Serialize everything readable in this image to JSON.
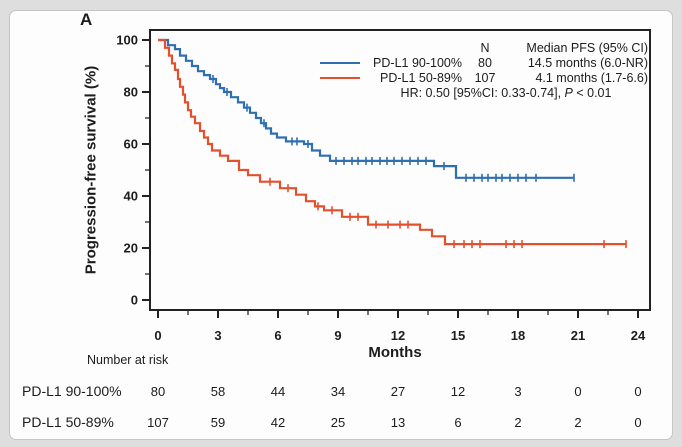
{
  "window": {
    "panel_label": "A"
  },
  "colors": {
    "page_bg": "#dedede",
    "card_bg": "#fdfdfd",
    "card_border": "#c6c6c6",
    "axis": "#222222",
    "text": "#1c1c1c",
    "blue": "#2f6fb1",
    "red": "#e4502c"
  },
  "legend": {
    "n_header": "N",
    "median_header": "Median PFS (95% CI)",
    "hr_prefix": "HR: 0.50 [95%CI: 0.33-0.74], ",
    "hr_p": "P",
    "hr_suffix": " < 0.01"
  },
  "risk_table": {
    "title": "Number at risk",
    "rows": [
      {
        "label": "PD-L1 90-100%",
        "values": [
          80,
          58,
          44,
          34,
          27,
          12,
          3,
          0,
          0
        ]
      },
      {
        "label": "PD-L1 50-89%",
        "values": [
          107,
          59,
          42,
          25,
          13,
          6,
          2,
          2,
          0
        ]
      }
    ]
  },
  "chart_data": {
    "type": "line",
    "subtype": "kaplan-meier-step",
    "xlabel": "Months",
    "ylabel": "Progression-free survival (%)",
    "xlim": [
      0,
      24
    ],
    "ylim": [
      0,
      100
    ],
    "x_ticks": [
      0,
      3,
      6,
      9,
      12,
      15,
      18,
      21,
      24
    ],
    "y_ticks": [
      0,
      20,
      40,
      60,
      80,
      100
    ],
    "grid": false,
    "legend_position": "upper right",
    "hr": 0.5,
    "hr_ci": [
      0.33,
      0.74
    ],
    "p_value": "< 0.01",
    "series": [
      {
        "name": "PD-L1 90-100%",
        "color": "#2f6fb1",
        "n": 80,
        "median_pfs": "14.5 months (6.0-NR)",
        "steps": [
          [
            0,
            100
          ],
          [
            0.5,
            98
          ],
          [
            0.85,
            96.5
          ],
          [
            1.1,
            94
          ],
          [
            1.4,
            92
          ],
          [
            1.7,
            90
          ],
          [
            2.0,
            88
          ],
          [
            2.3,
            86.5
          ],
          [
            2.6,
            85
          ],
          [
            2.9,
            83
          ],
          [
            3.1,
            81.5
          ],
          [
            3.3,
            80
          ],
          [
            3.65,
            78
          ],
          [
            4.0,
            76
          ],
          [
            4.3,
            74
          ],
          [
            4.6,
            72
          ],
          [
            4.9,
            70
          ],
          [
            5.15,
            68
          ],
          [
            5.4,
            66
          ],
          [
            5.65,
            64
          ],
          [
            5.95,
            62.5
          ],
          [
            6.4,
            61
          ],
          [
            7.3,
            60
          ],
          [
            7.7,
            57.5
          ],
          [
            8.1,
            55.5
          ],
          [
            8.6,
            53.5
          ],
          [
            13.8,
            51.5
          ],
          [
            14.9,
            47
          ],
          [
            20.8,
            47
          ]
        ],
        "censors": [
          [
            2.75,
            85
          ],
          [
            3.45,
            80
          ],
          [
            4.45,
            74
          ],
          [
            5.3,
            68
          ],
          [
            6.7,
            61
          ],
          [
            6.95,
            61
          ],
          [
            7.5,
            60
          ],
          [
            8.9,
            53.5
          ],
          [
            9.3,
            53.5
          ],
          [
            9.7,
            53.5
          ],
          [
            10.0,
            53.5
          ],
          [
            10.4,
            53.5
          ],
          [
            10.7,
            53.5
          ],
          [
            11.1,
            53.5
          ],
          [
            11.45,
            53.5
          ],
          [
            11.8,
            53.5
          ],
          [
            12.2,
            53.5
          ],
          [
            12.6,
            53.5
          ],
          [
            13.0,
            53.5
          ],
          [
            13.4,
            53.5
          ],
          [
            14.3,
            51.5
          ],
          [
            15.4,
            47
          ],
          [
            15.8,
            47
          ],
          [
            16.2,
            47
          ],
          [
            16.5,
            47
          ],
          [
            16.9,
            47
          ],
          [
            17.2,
            47
          ],
          [
            17.6,
            47
          ],
          [
            18.0,
            47
          ],
          [
            18.4,
            47
          ],
          [
            18.9,
            47
          ],
          [
            20.8,
            47
          ]
        ]
      },
      {
        "name": "PD-L1 50-89%",
        "color": "#e4502c",
        "n": 107,
        "median_pfs": "4.1 months (1.7-6.6)",
        "steps": [
          [
            0,
            100
          ],
          [
            0.35,
            97
          ],
          [
            0.55,
            94
          ],
          [
            0.7,
            91
          ],
          [
            0.85,
            88.5
          ],
          [
            1.0,
            85
          ],
          [
            1.1,
            82
          ],
          [
            1.25,
            79
          ],
          [
            1.35,
            76
          ],
          [
            1.5,
            73
          ],
          [
            1.65,
            70.5
          ],
          [
            1.85,
            68
          ],
          [
            2.1,
            65
          ],
          [
            2.3,
            62.5
          ],
          [
            2.5,
            60
          ],
          [
            2.7,
            57.5
          ],
          [
            3.1,
            55.5
          ],
          [
            3.5,
            53.5
          ],
          [
            4.05,
            50
          ],
          [
            4.5,
            48
          ],
          [
            5.1,
            45.5
          ],
          [
            6.1,
            43
          ],
          [
            6.9,
            40.5
          ],
          [
            7.4,
            38
          ],
          [
            7.85,
            36
          ],
          [
            8.3,
            34.5
          ],
          [
            9.2,
            32
          ],
          [
            10.5,
            29
          ],
          [
            13.1,
            27
          ],
          [
            13.7,
            24.5
          ],
          [
            14.35,
            21.5
          ],
          [
            23.4,
            21.5
          ]
        ],
        "censors": [
          [
            5.6,
            45.5
          ],
          [
            6.5,
            43
          ],
          [
            8.0,
            36
          ],
          [
            8.7,
            34.5
          ],
          [
            9.6,
            32
          ],
          [
            10.0,
            32
          ],
          [
            10.9,
            29
          ],
          [
            11.5,
            29
          ],
          [
            12.1,
            29
          ],
          [
            12.5,
            29
          ],
          [
            14.8,
            21.5
          ],
          [
            15.3,
            21.5
          ],
          [
            15.7,
            21.5
          ],
          [
            16.1,
            21.5
          ],
          [
            17.4,
            21.5
          ],
          [
            17.8,
            21.5
          ],
          [
            18.2,
            21.5
          ],
          [
            22.3,
            21.5
          ],
          [
            23.4,
            21.5
          ]
        ]
      }
    ]
  }
}
